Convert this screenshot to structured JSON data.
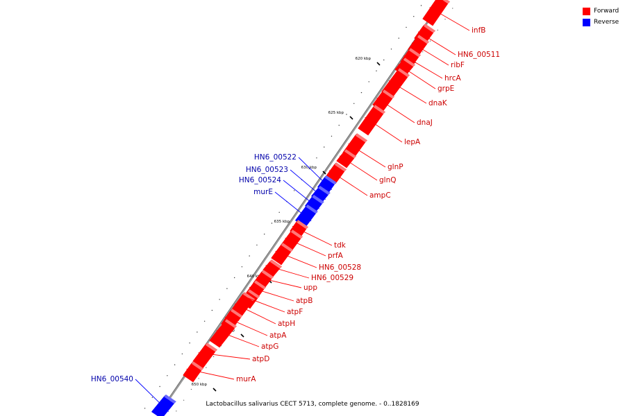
{
  "footer": "Lactobacillus salivarius CECT 5713, complete genome. - 0..1828169",
  "legend": [
    {
      "label": "Forward",
      "color": "#ff0000"
    },
    {
      "label": "Reverse",
      "color": "#0000ff"
    }
  ],
  "colors": {
    "forward": "#ff0000",
    "reverse": "#0000ff",
    "backbone": "#999999"
  },
  "scale_ticks": [
    "620 kbp",
    "625 kbp",
    "630 kbp",
    "635 kbp",
    "640 kbp",
    "645 kbp",
    "650 kbp"
  ],
  "genes": [
    {
      "label": "infB",
      "strand": "forward"
    },
    {
      "label": "HN6_00511",
      "strand": "forward"
    },
    {
      "label": "ribF",
      "strand": "forward"
    },
    {
      "label": "hrcA",
      "strand": "forward"
    },
    {
      "label": "grpE",
      "strand": "forward"
    },
    {
      "label": "dnaK",
      "strand": "forward"
    },
    {
      "label": "dnaJ",
      "strand": "forward"
    },
    {
      "label": "lepA",
      "strand": "forward"
    },
    {
      "label": "glnP",
      "strand": "forward"
    },
    {
      "label": "glnQ",
      "strand": "forward"
    },
    {
      "label": "ampC",
      "strand": "forward"
    },
    {
      "label": "HN6_00522",
      "strand": "reverse"
    },
    {
      "label": "HN6_00523",
      "strand": "reverse"
    },
    {
      "label": "HN6_00524",
      "strand": "reverse"
    },
    {
      "label": "murE",
      "strand": "reverse"
    },
    {
      "label": "tdk",
      "strand": "forward"
    },
    {
      "label": "prfA",
      "strand": "forward"
    },
    {
      "label": "HN6_00528",
      "strand": "forward"
    },
    {
      "label": "HN6_00529",
      "strand": "forward"
    },
    {
      "label": "upp",
      "strand": "forward"
    },
    {
      "label": "atpB",
      "strand": "forward"
    },
    {
      "label": "atpF",
      "strand": "forward"
    },
    {
      "label": "atpH",
      "strand": "forward"
    },
    {
      "label": "atpA",
      "strand": "forward"
    },
    {
      "label": "atpG",
      "strand": "forward"
    },
    {
      "label": "atpD",
      "strand": "forward"
    },
    {
      "label": "murA",
      "strand": "forward"
    },
    {
      "label": "HN6_00540",
      "strand": "reverse"
    }
  ]
}
